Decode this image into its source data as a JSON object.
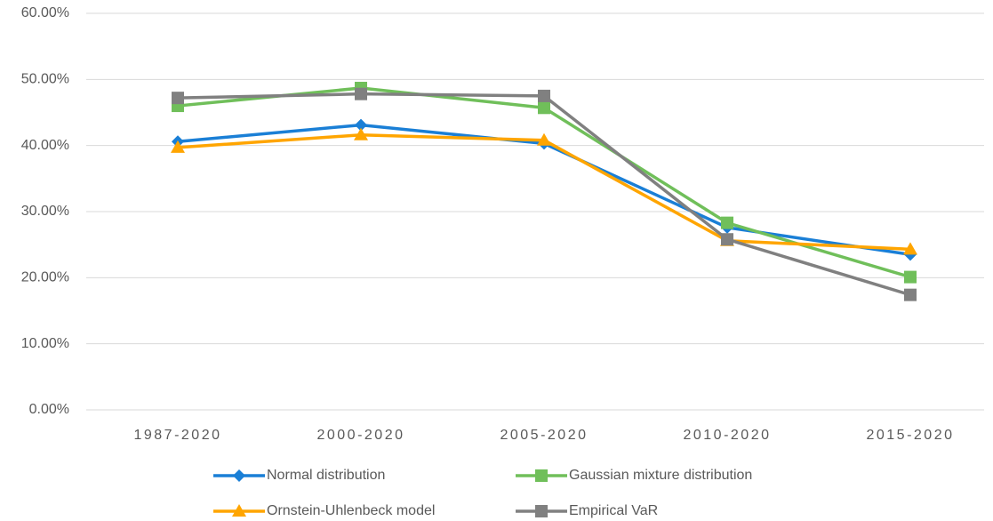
{
  "chart_data": {
    "type": "line",
    "categories": [
      "1987-2020",
      "2000-2020",
      "2005-2020",
      "2010-2020",
      "2015-2020"
    ],
    "series": [
      {
        "name": "Normal distribution",
        "color": "#1a7fd6",
        "marker": "diamond",
        "values": [
          40.6,
          43.1,
          40.3,
          27.6,
          23.5
        ]
      },
      {
        "name": "Gaussian mixture distribution",
        "color": "#70bf5a",
        "marker": "square",
        "values": [
          46.0,
          48.7,
          45.7,
          28.3,
          20.1
        ]
      },
      {
        "name": "Ornstein-Uhlenbeck model",
        "color": "#ffa500",
        "marker": "triangle",
        "values": [
          39.7,
          41.6,
          40.8,
          25.6,
          24.3
        ]
      },
      {
        "name": "Empirical VaR",
        "color": "#808080",
        "marker": "square",
        "values": [
          47.2,
          47.8,
          47.5,
          25.8,
          17.4
        ]
      }
    ],
    "ylim": [
      0,
      60
    ],
    "yticks": [
      {
        "value": 0,
        "label": "0.00%"
      },
      {
        "value": 10,
        "label": "10.00%"
      },
      {
        "value": 20,
        "label": "20.00%"
      },
      {
        "value": 30,
        "label": "30.00%"
      },
      {
        "value": 40,
        "label": "40.00%"
      },
      {
        "value": 50,
        "label": "50.00%"
      },
      {
        "value": 60,
        "label": "60.00%"
      }
    ],
    "grid": true,
    "legend": "bottom"
  }
}
